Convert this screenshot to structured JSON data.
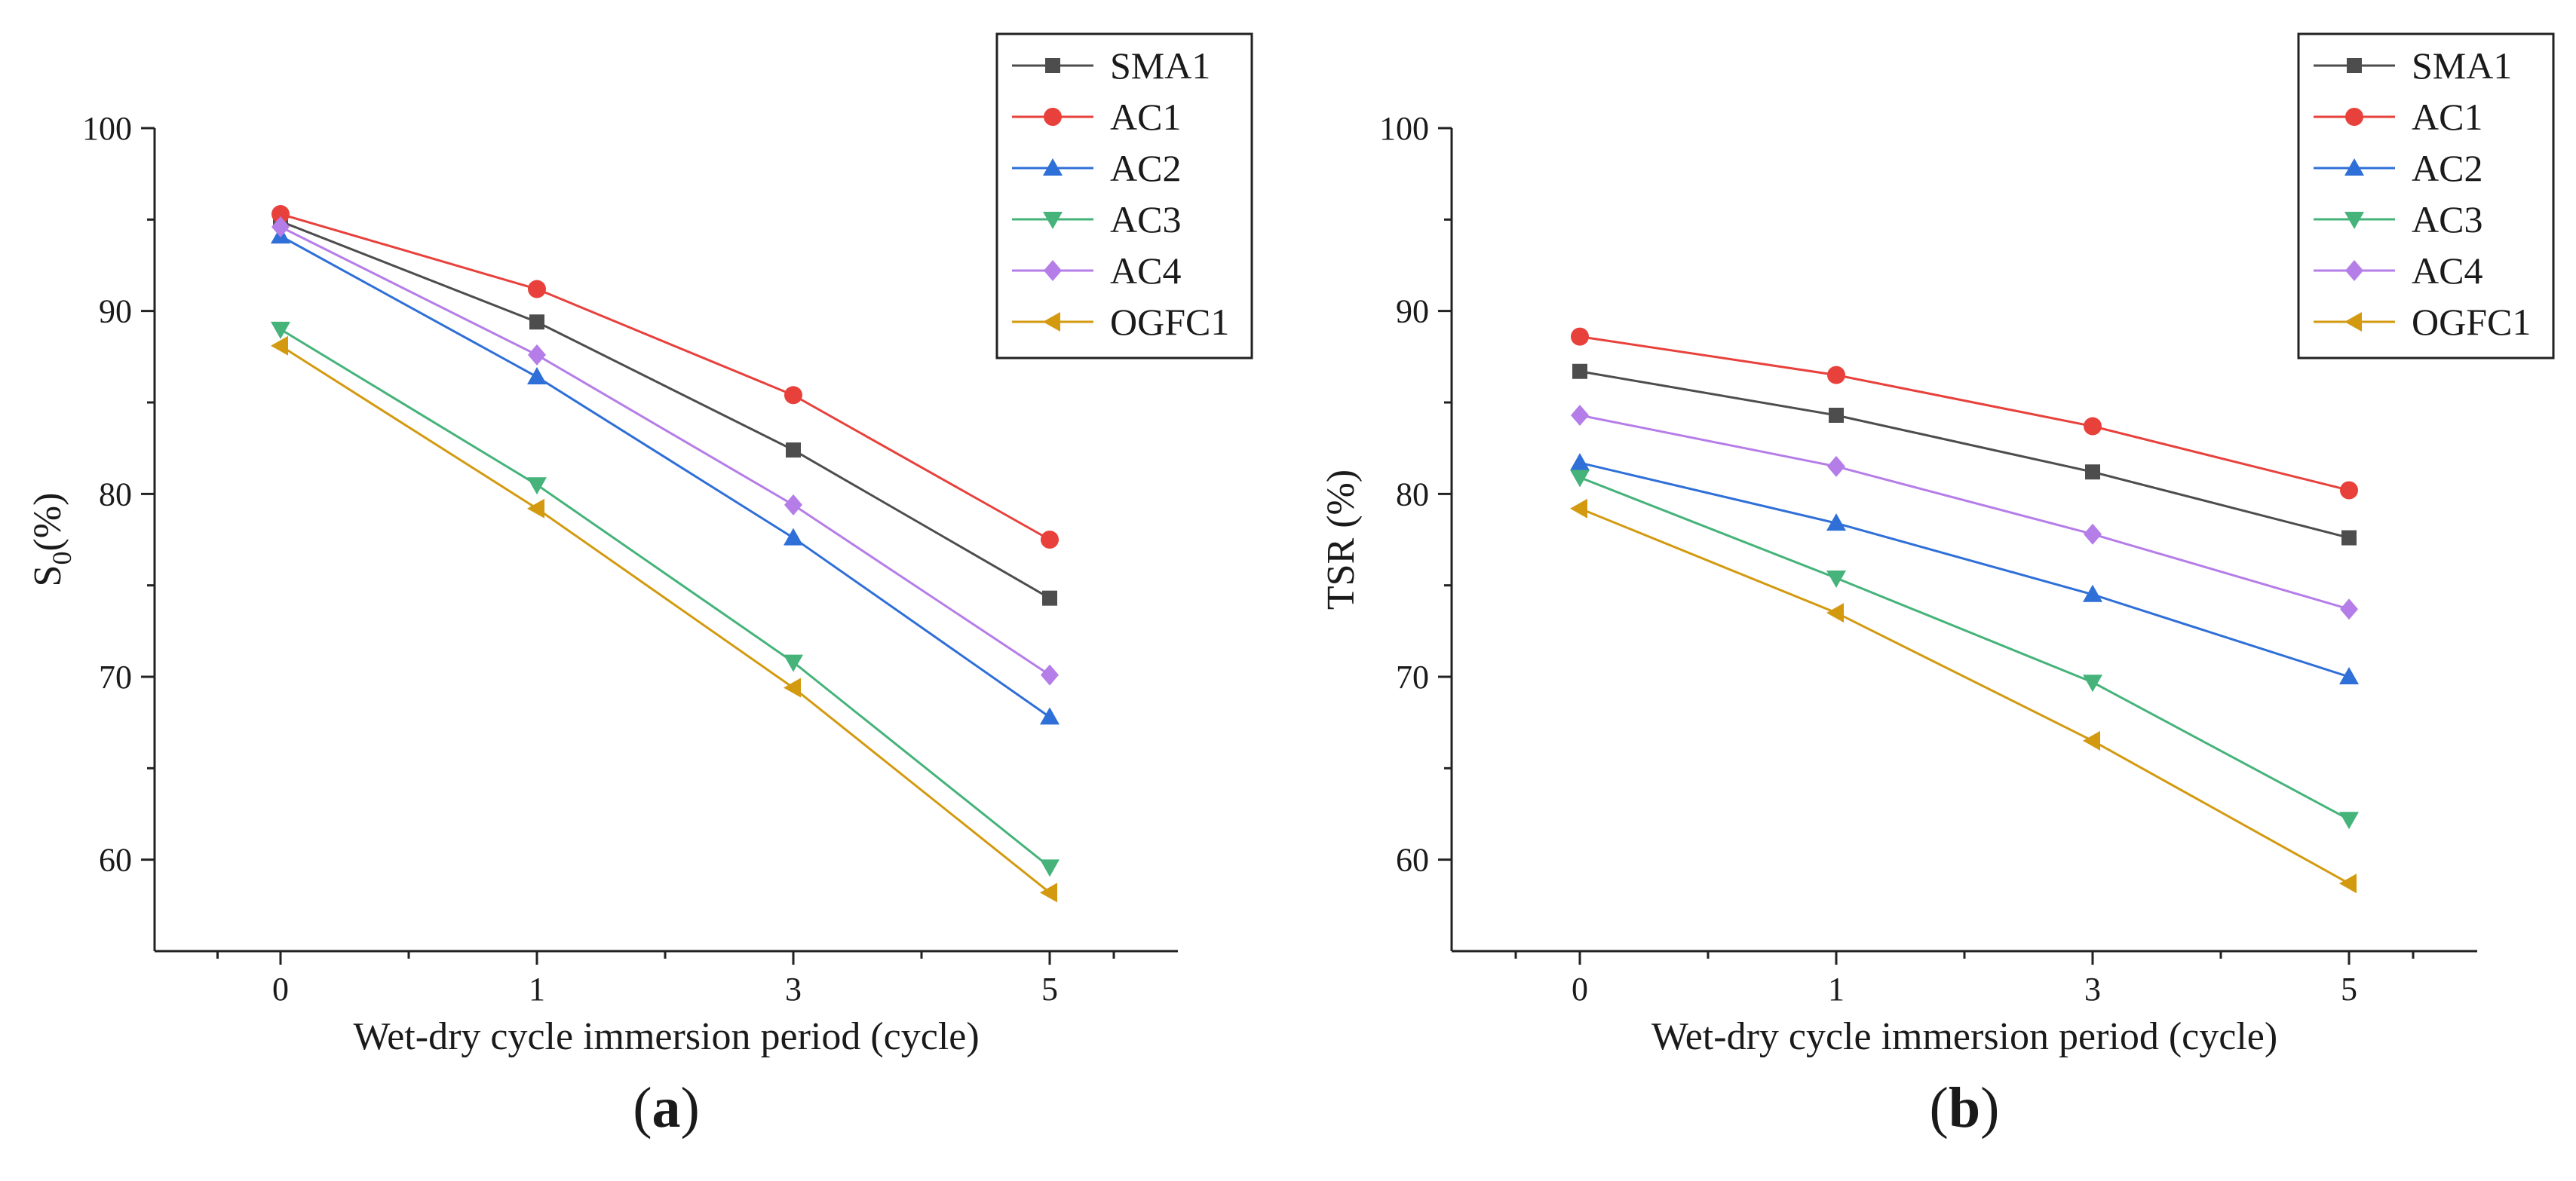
{
  "chart_data": [
    {
      "type": "line",
      "panel_label": "a",
      "title": "",
      "xlabel": "Wet-dry cycle immersion period (cycle)",
      "ylabel": "S0(%)",
      "ylabel_main": "S",
      "ylabel_sub": "0",
      "ylabel_suffix": "(%)",
      "categories": [
        "0",
        "1",
        "3",
        "5"
      ],
      "ylim": [
        55,
        100
      ],
      "yticks": [
        60,
        70,
        80,
        90,
        100
      ],
      "legend_position": "top-right",
      "series": [
        {
          "name": "SMA1",
          "color": "#4d4d4d",
          "marker": "square",
          "values": [
            94.9,
            89.4,
            82.4,
            74.3
          ]
        },
        {
          "name": "AC1",
          "color": "#e8413c",
          "marker": "circle",
          "values": [
            95.3,
            91.2,
            85.4,
            77.5
          ]
        },
        {
          "name": "AC2",
          "color": "#2f6fd8",
          "marker": "triangle-up",
          "values": [
            94.1,
            86.4,
            77.6,
            67.8
          ]
        },
        {
          "name": "AC3",
          "color": "#45b37a",
          "marker": "triangle-down",
          "values": [
            89.0,
            80.5,
            70.8,
            59.6
          ]
        },
        {
          "name": "AC4",
          "color": "#b57de8",
          "marker": "diamond",
          "values": [
            94.6,
            87.6,
            79.4,
            70.1
          ]
        },
        {
          "name": "OGFC1",
          "color": "#d39a10",
          "marker": "triangle-left",
          "values": [
            88.1,
            79.2,
            69.4,
            58.2
          ]
        }
      ]
    },
    {
      "type": "line",
      "panel_label": "b",
      "title": "",
      "xlabel": "Wet-dry cycle immersion period (cycle)",
      "ylabel": "TSR (%)",
      "categories": [
        "0",
        "1",
        "3",
        "5"
      ],
      "ylim": [
        55,
        100
      ],
      "yticks": [
        60,
        70,
        80,
        90,
        100
      ],
      "legend_position": "top-right",
      "series": [
        {
          "name": "SMA1",
          "color": "#4d4d4d",
          "marker": "square",
          "values": [
            86.7,
            84.3,
            81.2,
            77.6
          ]
        },
        {
          "name": "AC1",
          "color": "#e8413c",
          "marker": "circle",
          "values": [
            88.6,
            86.5,
            83.7,
            80.2
          ]
        },
        {
          "name": "AC2",
          "color": "#2f6fd8",
          "marker": "triangle-up",
          "values": [
            81.7,
            78.4,
            74.5,
            70.0
          ]
        },
        {
          "name": "AC3",
          "color": "#45b37a",
          "marker": "triangle-down",
          "values": [
            80.9,
            75.4,
            69.7,
            62.2
          ]
        },
        {
          "name": "AC4",
          "color": "#b57de8",
          "marker": "diamond",
          "values": [
            84.3,
            81.5,
            77.8,
            73.7
          ]
        },
        {
          "name": "OGFC1",
          "color": "#d39a10",
          "marker": "triangle-left",
          "values": [
            79.2,
            73.5,
            66.5,
            58.7
          ]
        }
      ]
    }
  ]
}
